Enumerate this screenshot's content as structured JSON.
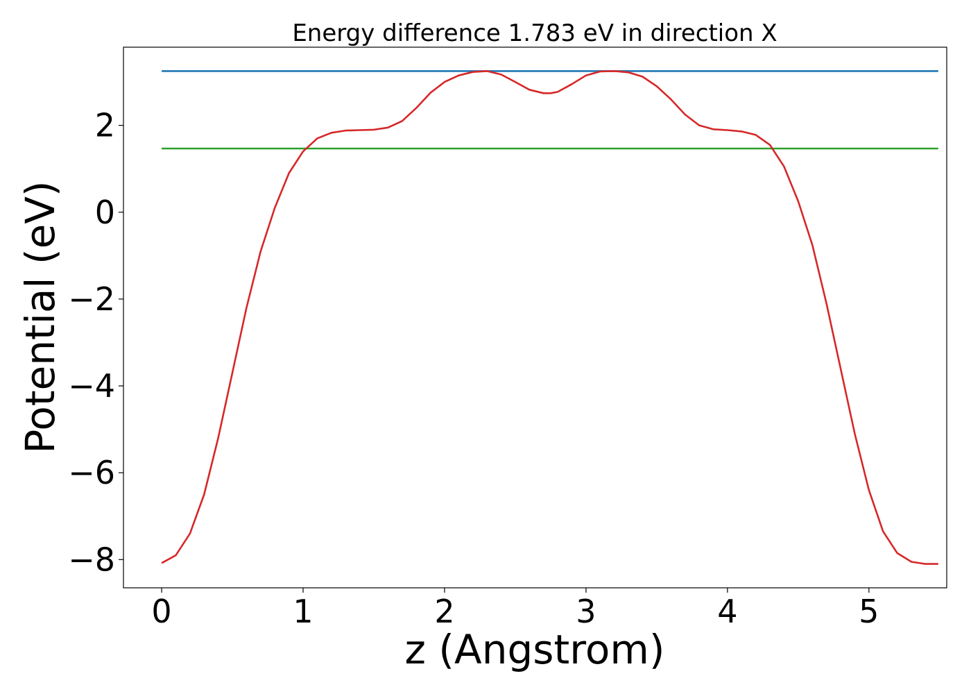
{
  "chart_data": {
    "type": "line",
    "title": "Energy difference 1.783 eV in direction X",
    "xlabel": "z (Angstrom)",
    "ylabel": "Potential (eV)",
    "xlim": [
      -0.27,
      5.55
    ],
    "ylim": [
      -8.65,
      3.8
    ],
    "xticks": [
      0,
      1,
      2,
      3,
      4,
      5
    ],
    "xtick_labels": [
      "0",
      "1",
      "2",
      "3",
      "4",
      "5"
    ],
    "yticks": [
      2,
      0,
      -2,
      -4,
      -6,
      -8
    ],
    "ytick_labels": [
      "2",
      "0",
      "−2",
      "−4",
      "−6",
      "−8"
    ],
    "grid": false,
    "legend": "none",
    "series": [
      {
        "color": "#1f77b4",
        "x": [
          0,
          5.49
        ],
        "y": [
          3.25,
          3.25
        ]
      },
      {
        "color": "#2ca02c",
        "x": [
          0,
          5.49
        ],
        "y": [
          1.467,
          1.467
        ]
      },
      {
        "color": "#d62728",
        "x": [
          0,
          0.1,
          0.2,
          0.3,
          0.4,
          0.5,
          0.6,
          0.7,
          0.8,
          0.9,
          1.0,
          1.1,
          1.2,
          1.3,
          1.4,
          1.5,
          1.6,
          1.7,
          1.8,
          1.9,
          2.0,
          2.1,
          2.2,
          2.3,
          2.4,
          2.5,
          2.6,
          2.7,
          2.75,
          2.8,
          2.9,
          3.0,
          3.1,
          3.2,
          3.3,
          3.4,
          3.5,
          3.6,
          3.7,
          3.8,
          3.9,
          4.0,
          4.1,
          4.2,
          4.3,
          4.4,
          4.5,
          4.6,
          4.7,
          4.8,
          4.9,
          5.0,
          5.1,
          5.2,
          5.3,
          5.4,
          5.49
        ],
        "y": [
          -8.08,
          -7.9,
          -7.4,
          -6.5,
          -5.2,
          -3.7,
          -2.2,
          -0.9,
          0.1,
          0.9,
          1.4,
          1.7,
          1.83,
          1.88,
          1.89,
          1.9,
          1.95,
          2.1,
          2.4,
          2.75,
          3.0,
          3.15,
          3.23,
          3.25,
          3.17,
          3.0,
          2.82,
          2.74,
          2.74,
          2.77,
          2.95,
          3.15,
          3.24,
          3.25,
          3.22,
          3.12,
          2.9,
          2.6,
          2.25,
          2.0,
          1.91,
          1.89,
          1.86,
          1.78,
          1.55,
          1.05,
          0.25,
          -0.75,
          -2.1,
          -3.6,
          -5.1,
          -6.4,
          -7.35,
          -7.85,
          -8.05,
          -8.1,
          -8.1
        ]
      }
    ]
  }
}
